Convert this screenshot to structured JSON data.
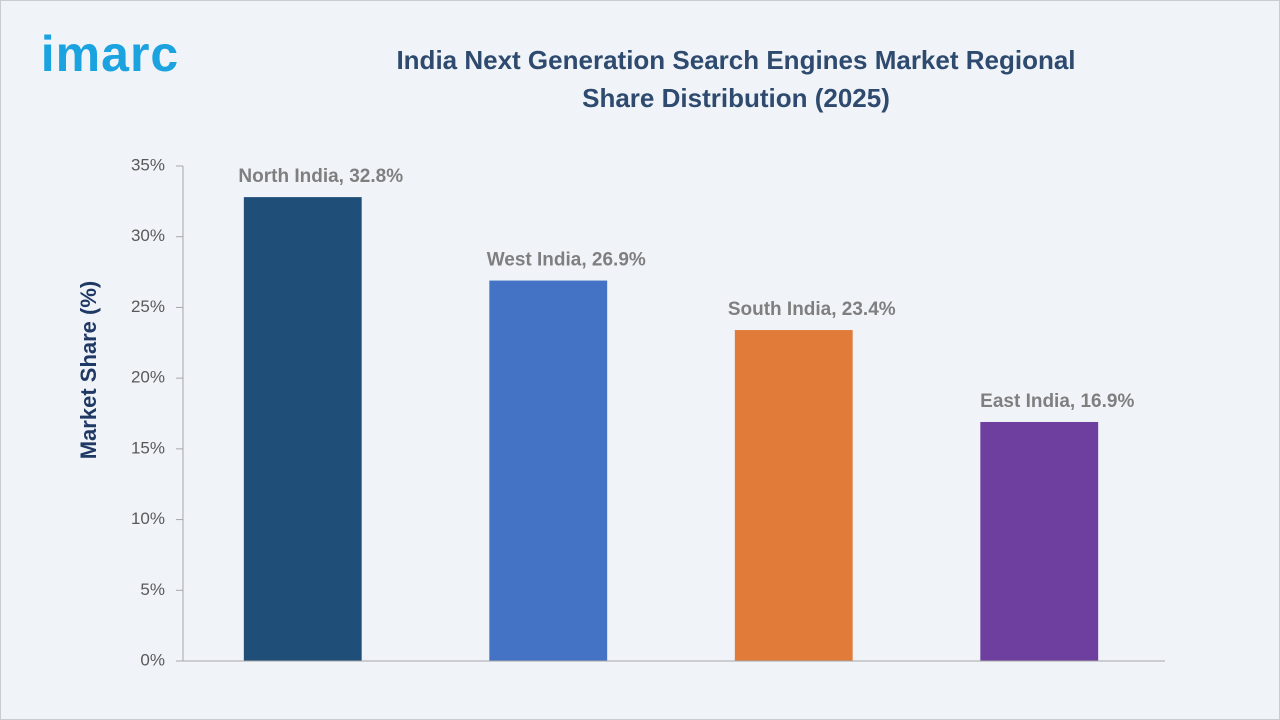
{
  "logo": "imarc",
  "chart_data": {
    "type": "bar",
    "title": "India Next Generation Search Engines Market Regional Share Distribution (2025)",
    "y_label": "Market Share (%)",
    "values": [
      32.8,
      26.9,
      23.4,
      16.9
    ],
    "value_labels": [
      "North India, 32.8%",
      "West India, 26.9%",
      "South India, 23.4%",
      "East India, 16.9%"
    ],
    "colors": [
      "#1f4e79",
      "#4472c4",
      "#e07b39",
      "#6f3fa0"
    ],
    "ylim": [
      0,
      35
    ],
    "yticks": [
      {
        "value": 0,
        "label": "0%"
      },
      {
        "value": 5,
        "label": "5%"
      },
      {
        "value": 10,
        "label": "10%"
      },
      {
        "value": 15,
        "label": "15%"
      },
      {
        "value": 20,
        "label": "20%"
      },
      {
        "value": 25,
        "label": "25%"
      },
      {
        "value": 30,
        "label": "30%"
      },
      {
        "value": 35,
        "label": "35%"
      }
    ],
    "grid": false
  }
}
